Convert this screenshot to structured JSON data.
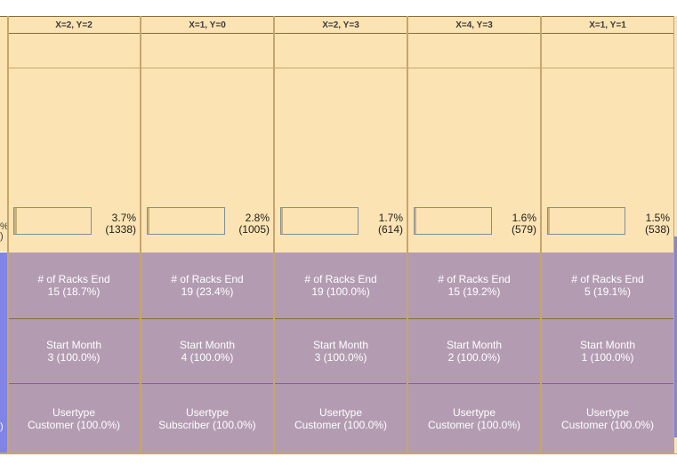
{
  "left_fragments": {
    "bar_pct": "%",
    "bar_count": ")",
    "usertype": ")"
  },
  "columns": [
    {
      "header": "X=2, Y=2",
      "bar_fraction": 0.037,
      "pct": "3.7%",
      "count": "(1338)",
      "racks_label": "# of Racks End",
      "racks_value": "15 (18.7%)",
      "month_label": "Start Month",
      "month_value": "3 (100.0%)",
      "usertype_label": "Usertype",
      "usertype_value": "Customer (100.0%)"
    },
    {
      "header": "X=1, Y=0",
      "bar_fraction": 0.028,
      "pct": "2.8%",
      "count": "(1005)",
      "racks_label": "# of Racks End",
      "racks_value": "19 (23.4%)",
      "month_label": "Start Month",
      "month_value": "4 (100.0%)",
      "usertype_label": "Usertype",
      "usertype_value": "Subscriber (100.0%)"
    },
    {
      "header": "X=2, Y=3",
      "bar_fraction": 0.017,
      "pct": "1.7%",
      "count": "(614)",
      "racks_label": "# of Racks End",
      "racks_value": "19 (100.0%)",
      "month_label": "Start Month",
      "month_value": "3 (100.0%)",
      "usertype_label": "Usertype",
      "usertype_value": "Customer (100.0%)"
    },
    {
      "header": "X=4, Y=3",
      "bar_fraction": 0.016,
      "pct": "1.6%",
      "count": "(579)",
      "racks_label": "# of Racks End",
      "racks_value": "15 (19.2%)",
      "month_label": "Start Month",
      "month_value": "2 (100.0%)",
      "usertype_label": "Usertype",
      "usertype_value": "Customer (100.0%)"
    },
    {
      "header": "X=1, Y=1",
      "bar_fraction": 0.015,
      "pct": "1.5%",
      "count": "(538)",
      "racks_label": "# of Racks End",
      "racks_value": "5 (19.1%)",
      "month_label": "Start Month",
      "month_value": "1 (100.0%)",
      "usertype_label": "Usertype",
      "usertype_value": "Customer (100.0%)"
    }
  ],
  "colors": {
    "cell_tan": "#fce3b3",
    "cell_purple": "#b39cb2",
    "edge_blue": "#7f84e6",
    "grid_line": "#c8a56a",
    "header_text": "#3a3a3a"
  }
}
